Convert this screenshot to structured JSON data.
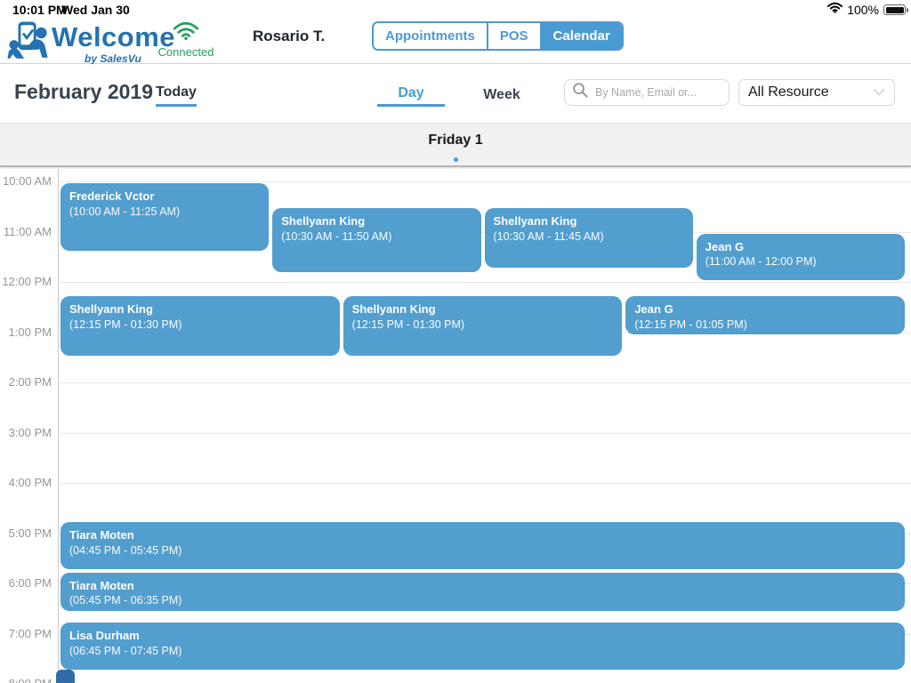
{
  "status_bar": {
    "time": "10:01 PM",
    "date": "Wed Jan 30",
    "battery_percent": "100%"
  },
  "header": {
    "logo_title": "Welcome",
    "logo_subtitle": "by SalesVu",
    "connection_status": "Connected",
    "user_name": "Rosario T.",
    "tabs": [
      {
        "label": "Appointments",
        "active": false
      },
      {
        "label": "POS",
        "active": false
      },
      {
        "label": "Calendar",
        "active": true
      }
    ]
  },
  "toolbar": {
    "month_label": "February 2019",
    "today_label": "Today",
    "view_tabs": [
      {
        "label": "Day",
        "active": true
      },
      {
        "label": "Week",
        "active": false
      }
    ],
    "search_placeholder": "By Name, Email or...",
    "resource_filter_value": "All Resource"
  },
  "day_header": {
    "label": "Friday 1"
  },
  "calendar": {
    "time_labels": [
      "10:00 AM",
      "11:00 AM",
      "12:00 PM",
      "1:00 PM",
      "2:00 PM",
      "3:00 PM",
      "4:00 PM",
      "5:00 PM",
      "6:00 PM",
      "7:00 PM",
      "8:00 PM"
    ],
    "events": [
      {
        "name": "Frederick Vctor",
        "start": "10:00 AM",
        "end": "11:25 AM"
      },
      {
        "name": "Shellyann King",
        "start": "10:30 AM",
        "end": "11:50 AM"
      },
      {
        "name": "Shellyann King",
        "start": "10:30 AM",
        "end": "11:45 AM"
      },
      {
        "name": "Jean G",
        "start": "11:00 AM",
        "end": "12:00 PM"
      },
      {
        "name": "Shellyann King",
        "start": "12:15 PM",
        "end": "01:30 PM"
      },
      {
        "name": "Shellyann King",
        "start": "12:15 PM",
        "end": "01:30 PM"
      },
      {
        "name": "Jean G",
        "start": "12:15 PM",
        "end": "01:05 PM"
      },
      {
        "name": "Tiara Moten",
        "start": "04:45 PM",
        "end": "05:45 PM"
      },
      {
        "name": "Tiara Moten",
        "start": "05:45 PM",
        "end": "06:35 PM"
      },
      {
        "name": "Lisa Durham",
        "start": "06:45 PM",
        "end": "07:45 PM"
      }
    ]
  },
  "colors": {
    "accent_blue": "#4a9bd2",
    "event_blue": "#4999cc",
    "connected_green": "#27a060",
    "logo_blue": "#2472b2"
  }
}
